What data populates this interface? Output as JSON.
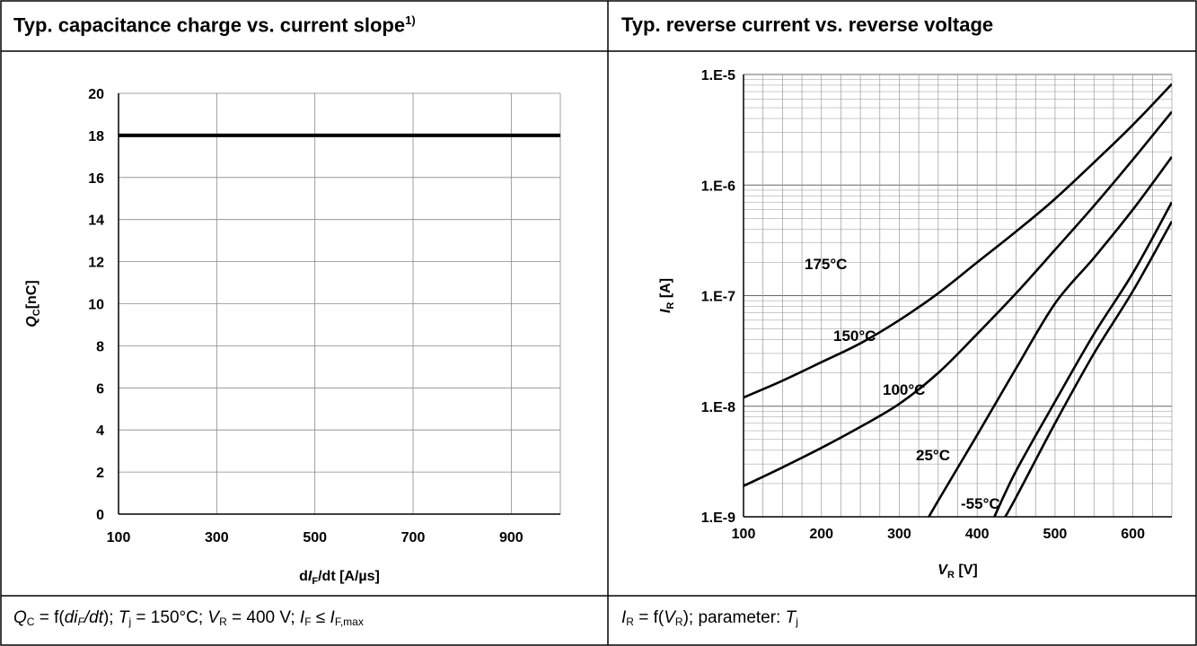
{
  "panels": {
    "left": {
      "title": "Typ. capacitance charge vs. current slope",
      "title_note": "1)",
      "caption": {
        "q": "Q",
        "q_sub": "C",
        "eq1": " = f(",
        "di": "di",
        "di_sub": "F",
        "dt": "/dt",
        "sep1": "); ",
        "tj": "T",
        "tj_sub": "j",
        "tj_val": " = 150°C; ",
        "vr": "V",
        "vr_sub": "R",
        "vr_val": " = 400 V; ",
        "if": "I",
        "if_sub": "F",
        "le": " ≤ ",
        "ifm": "I",
        "ifm_sub": "F,max"
      }
    },
    "right": {
      "title": "Typ. reverse current vs. reverse voltage",
      "caption": {
        "ir": "I",
        "ir_sub": "R",
        "eq": " = f(",
        "vr": "V",
        "vr_sub": "R",
        "rest": "); parameter: ",
        "tj": "T",
        "tj_sub": "j"
      }
    }
  },
  "chart_data": [
    {
      "type": "line",
      "xlabel": {
        "prefix": "d",
        "var": "I",
        "sub": "F",
        "rest": "/dt [A/µs]"
      },
      "ylabel": {
        "var": "Q",
        "sub": "C",
        "rest": "[nC]"
      },
      "xlim": [
        100,
        1000
      ],
      "ylim": [
        0,
        20
      ],
      "xticks": [
        100,
        300,
        500,
        700,
        900
      ],
      "yticks": [
        0,
        2,
        4,
        6,
        8,
        10,
        12,
        14,
        16,
        18,
        20
      ],
      "xgrid": [
        100,
        300,
        500,
        700,
        900,
        1000
      ],
      "grid": true,
      "series": [
        {
          "x": [
            100,
            1000
          ],
          "y": [
            18,
            18
          ]
        }
      ]
    },
    {
      "type": "line",
      "yscale": "log",
      "xlabel": {
        "var": "V",
        "sub": "R",
        "rest": " [V]"
      },
      "ylabel": {
        "var": "I",
        "sub": "R",
        "rest": " [A]"
      },
      "xlim": [
        100,
        650
      ],
      "ylim": [
        1e-09,
        1e-05
      ],
      "xticks": [
        100,
        200,
        300,
        400,
        500,
        600
      ],
      "yticks": [
        {
          "value": 1e-09,
          "label": "1.E-9"
        },
        {
          "value": 1e-08,
          "label": "1.E-8"
        },
        {
          "value": 1e-07,
          "label": "1.E-7"
        },
        {
          "value": 1e-06,
          "label": "1.E-6"
        },
        {
          "value": 1e-05,
          "label": "1.E-5"
        }
      ],
      "grid": true,
      "series": [
        {
          "name": "175°C",
          "x": [
            100,
            150,
            200,
            250,
            300,
            350,
            400,
            450,
            500,
            550,
            600,
            650
          ],
          "y": [
            1.2e-08,
            1.7e-08,
            2.5e-08,
            3.7e-08,
            6e-08,
            1.05e-07,
            2e-07,
            3.8e-07,
            7.5e-07,
            1.6e-06,
            3.5e-06,
            8.2e-06
          ]
        },
        {
          "name": "150°C",
          "x": [
            100,
            150,
            200,
            250,
            300,
            350,
            400,
            450,
            500,
            550,
            600,
            650
          ],
          "y": [
            1.9e-09,
            2.8e-09,
            4.2e-09,
            6.5e-09,
            1.05e-08,
            2e-08,
            4.5e-08,
            1.05e-07,
            2.6e-07,
            6.5e-07,
            1.7e-06,
            4.6e-06
          ]
        },
        {
          "name": "100°C",
          "x": [
            338,
            350,
            400,
            450,
            500,
            550,
            600,
            650
          ],
          "y": [
            1e-09,
            1.4e-09,
            5.5e-09,
            2.2e-08,
            8.5e-08,
            2.2e-07,
            6e-07,
            1.8e-06
          ]
        },
        {
          "name": "25°C",
          "x": [
            422,
            450,
            500,
            550,
            600,
            650
          ],
          "y": [
            1e-09,
            2.6e-09,
            1.1e-08,
            4.5e-08,
            1.6e-07,
            7e-07
          ]
        },
        {
          "name": "-55°C",
          "x": [
            436,
            450,
            500,
            550,
            600,
            650
          ],
          "y": [
            1e-09,
            1.5e-09,
            7e-09,
            3e-08,
            1.1e-07,
            4.7e-07
          ]
        }
      ]
    }
  ]
}
